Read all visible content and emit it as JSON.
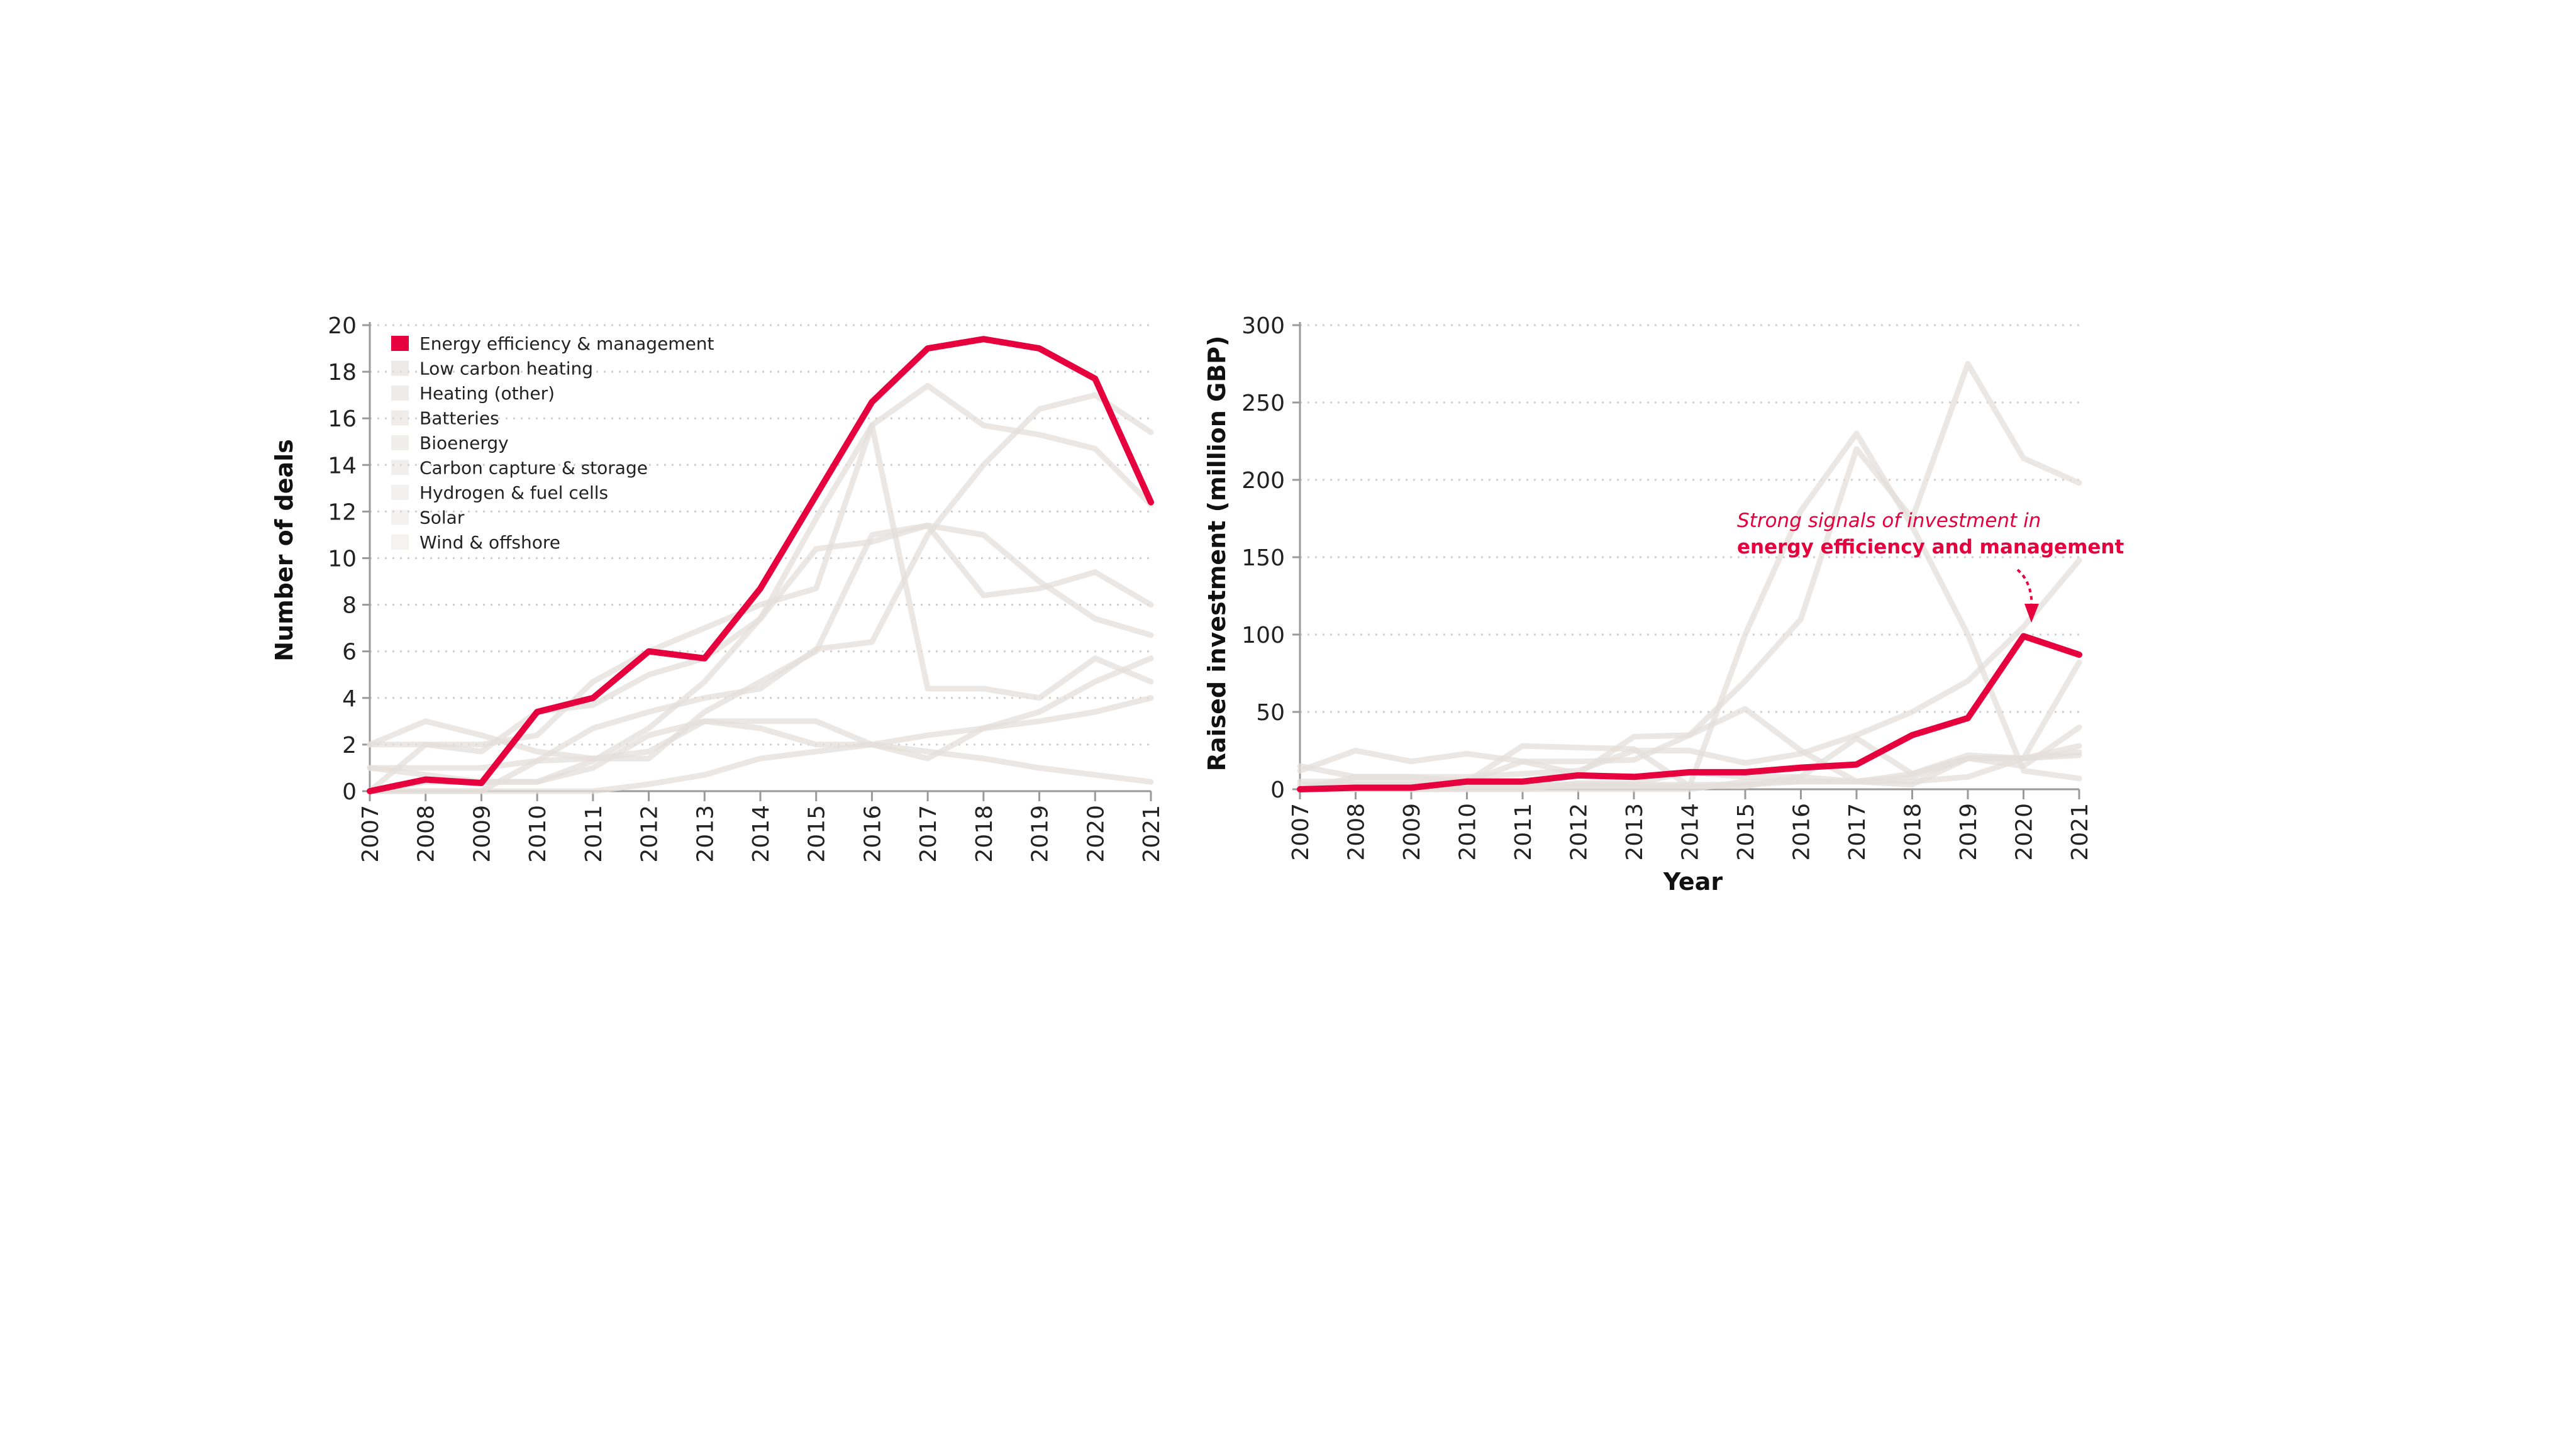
{
  "colors": {
    "highlight": "#e6003d",
    "muted": "#e4dfdb",
    "axis": "#9a9a9a",
    "grid": "#cfcfcf"
  },
  "chart_data": [
    {
      "type": "line",
      "ylabel": "Number of deals",
      "xlabel": "",
      "x": [
        2007,
        2008,
        2009,
        2010,
        2011,
        2012,
        2013,
        2014,
        2015,
        2016,
        2017,
        2018,
        2019,
        2020,
        2021
      ],
      "ylim": [
        0,
        20
      ],
      "yticks": [
        0,
        2,
        4,
        6,
        8,
        10,
        12,
        14,
        16,
        18,
        20
      ],
      "grid": true,
      "legend_position": "top-left",
      "series": [
        {
          "name": "Energy efficiency & management",
          "highlight": true,
          "values": [
            0,
            0.5,
            0.35,
            3.4,
            4,
            6,
            5.7,
            8.7,
            12.7,
            16.7,
            19,
            19.4,
            19,
            17.7,
            12.4
          ]
        },
        {
          "name": "Low carbon heating",
          "values": [
            0,
            2,
            2,
            2.4,
            4.7,
            6,
            7,
            8,
            8.7,
            15.7,
            17.4,
            15.7,
            15.3,
            14.7,
            12.3
          ]
        },
        {
          "name": "Heating (other)",
          "values": [
            0,
            0,
            0,
            1.3,
            2.7,
            3.4,
            4,
            4.4,
            6.1,
            6.4,
            11,
            14,
            16.4,
            17,
            15.4
          ]
        },
        {
          "name": "Batteries",
          "values": [
            2,
            2,
            1.7,
            3.4,
            3.7,
            5,
            5.7,
            7.4,
            10.4,
            10.7,
            11.4,
            11,
            9,
            7.4,
            6.7
          ]
        },
        {
          "name": "Bioenergy",
          "values": [
            1,
            1,
            1,
            1.3,
            1.4,
            1.4,
            3.4,
            4.7,
            6,
            11,
            11.4,
            8.4,
            8.7,
            9.4,
            8
          ]
        },
        {
          "name": "Carbon capture & storage",
          "values": [
            0,
            0.4,
            0.4,
            0.4,
            1.3,
            2.7,
            4.7,
            7.4,
            11.7,
            15.7,
            4.4,
            4.4,
            4,
            5.7,
            4.7
          ]
        },
        {
          "name": "Hydrogen & fuel cells",
          "values": [
            2,
            3,
            2.4,
            1.7,
            1.4,
            1.7,
            3,
            3,
            3,
            2,
            1.4,
            2.7,
            3.4,
            4.7,
            5.7
          ]
        },
        {
          "name": "Solar",
          "values": [
            1,
            0.7,
            0.4,
            0.4,
            1,
            2.4,
            3,
            2.7,
            2,
            2,
            1.7,
            1.4,
            1,
            0.7,
            0.4
          ]
        },
        {
          "name": "Wind & offshore",
          "values": [
            0,
            0,
            0,
            0,
            0,
            0.3,
            0.7,
            1.4,
            1.7,
            2,
            2.4,
            2.7,
            3,
            3.4,
            4
          ]
        }
      ]
    },
    {
      "type": "line",
      "ylabel": "Raised investment (million GBP)",
      "xlabel": "Year",
      "x": [
        2007,
        2008,
        2009,
        2010,
        2011,
        2012,
        2013,
        2014,
        2015,
        2016,
        2017,
        2018,
        2019,
        2020,
        2021
      ],
      "ylim": [
        0,
        300
      ],
      "yticks": [
        0,
        50,
        100,
        150,
        200,
        250,
        300
      ],
      "grid": true,
      "annotation": {
        "line1": "Strong signals of investment in",
        "line2": "energy efficiency and management",
        "target_year": 2020
      },
      "series": [
        {
          "highlight": true,
          "values": [
            0,
            1,
            1,
            5,
            5,
            9,
            8,
            11,
            11,
            14,
            16,
            35,
            46,
            99,
            87
          ]
        },
        {
          "values": [
            0,
            8,
            8,
            5,
            28,
            27,
            26,
            2,
            100,
            180,
            230,
            170,
            100,
            12,
            7
          ]
        },
        {
          "values": [
            5,
            5,
            5,
            5,
            18,
            18,
            19,
            35,
            70,
            110,
            220,
            175,
            275,
            214,
            198
          ]
        },
        {
          "values": [
            12,
            25,
            18,
            23,
            18,
            10,
            34,
            35,
            52,
            25,
            5,
            10,
            20,
            15,
            40
          ]
        },
        {
          "values": [
            15,
            8,
            8,
            8,
            10,
            12,
            25,
            25,
            17,
            23,
            35,
            50,
            70,
            105,
            148
          ]
        },
        {
          "values": [
            3,
            3,
            3,
            3,
            3,
            3,
            3,
            3,
            3,
            5,
            5,
            3,
            20,
            20,
            82
          ]
        },
        {
          "values": [
            0,
            0,
            0,
            0,
            0,
            4,
            4,
            11,
            8,
            8,
            33,
            10,
            22,
            20,
            22
          ]
        },
        {
          "values": [
            0,
            0,
            0,
            2,
            2,
            2,
            2,
            2,
            2,
            8,
            5,
            5,
            8,
            20,
            28
          ]
        },
        {
          "values": [
            0,
            0,
            0,
            0,
            0,
            0,
            0,
            0,
            5,
            5,
            5,
            8,
            20,
            20,
            24
          ]
        }
      ]
    }
  ]
}
